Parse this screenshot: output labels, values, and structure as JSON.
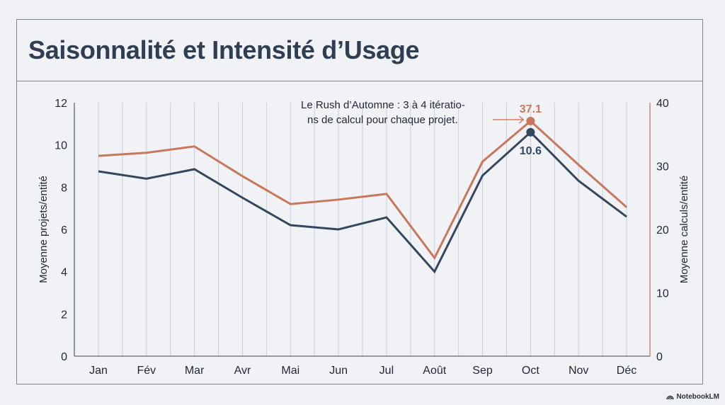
{
  "title": "Saisonnalité et Intensité d’Usage",
  "watermark": {
    "icon": "notebooklm-logo-icon",
    "label": "NotebookLM"
  },
  "colors": {
    "projects": "#34475e",
    "calculations": "#c8775b",
    "grid": "#c9ced6",
    "axis": "#5b6573",
    "text": "#222a35"
  },
  "chart_data": {
    "type": "line",
    "title": "Saisonnalité et Intensité d’Usage",
    "categories": [
      "Jan",
      "Fév",
      "Mar",
      "Avr",
      "Mai",
      "Jun",
      "Jul",
      "Août",
      "Sep",
      "Oct",
      "Nov",
      "Déc"
    ],
    "xlabel": "",
    "y_left": {
      "label": "Moyenne projets/entité",
      "ylim": [
        0,
        12
      ],
      "ticks": [
        "0",
        "2",
        "4",
        "6",
        "8",
        "10",
        "12"
      ]
    },
    "y_right": {
      "label": "Moyenne calculs/entité",
      "ylim": [
        0,
        40
      ],
      "ticks": [
        "0",
        "10",
        "20",
        "30",
        "40"
      ]
    },
    "grid": "vertical",
    "series": [
      {
        "name": "Moyenne projets/entité",
        "axis": "left",
        "color": "#34475e",
        "values": [
          8.75,
          8.4,
          8.85,
          7.5,
          6.2,
          6.0,
          6.57,
          4.0,
          8.55,
          10.6,
          8.3,
          6.6
        ]
      },
      {
        "name": "Moyenne calculs/entité",
        "axis": "right",
        "color": "#c8775b",
        "values": [
          31.6,
          32.1,
          33.1,
          28.4,
          24.0,
          24.7,
          25.6,
          15.5,
          30.7,
          37.1,
          30.2,
          23.5
        ]
      }
    ],
    "data_labels": [
      {
        "series": 0,
        "category": "Oct",
        "text": "10.6"
      },
      {
        "series": 1,
        "category": "Oct",
        "text": "37.1"
      }
    ],
    "annotation": {
      "lines": [
        "Le Rush d’Automne : 3 à 4 itératio-",
        "ns de calcul pour chaque projet."
      ],
      "target_category": "Oct",
      "target_series": 1
    }
  }
}
